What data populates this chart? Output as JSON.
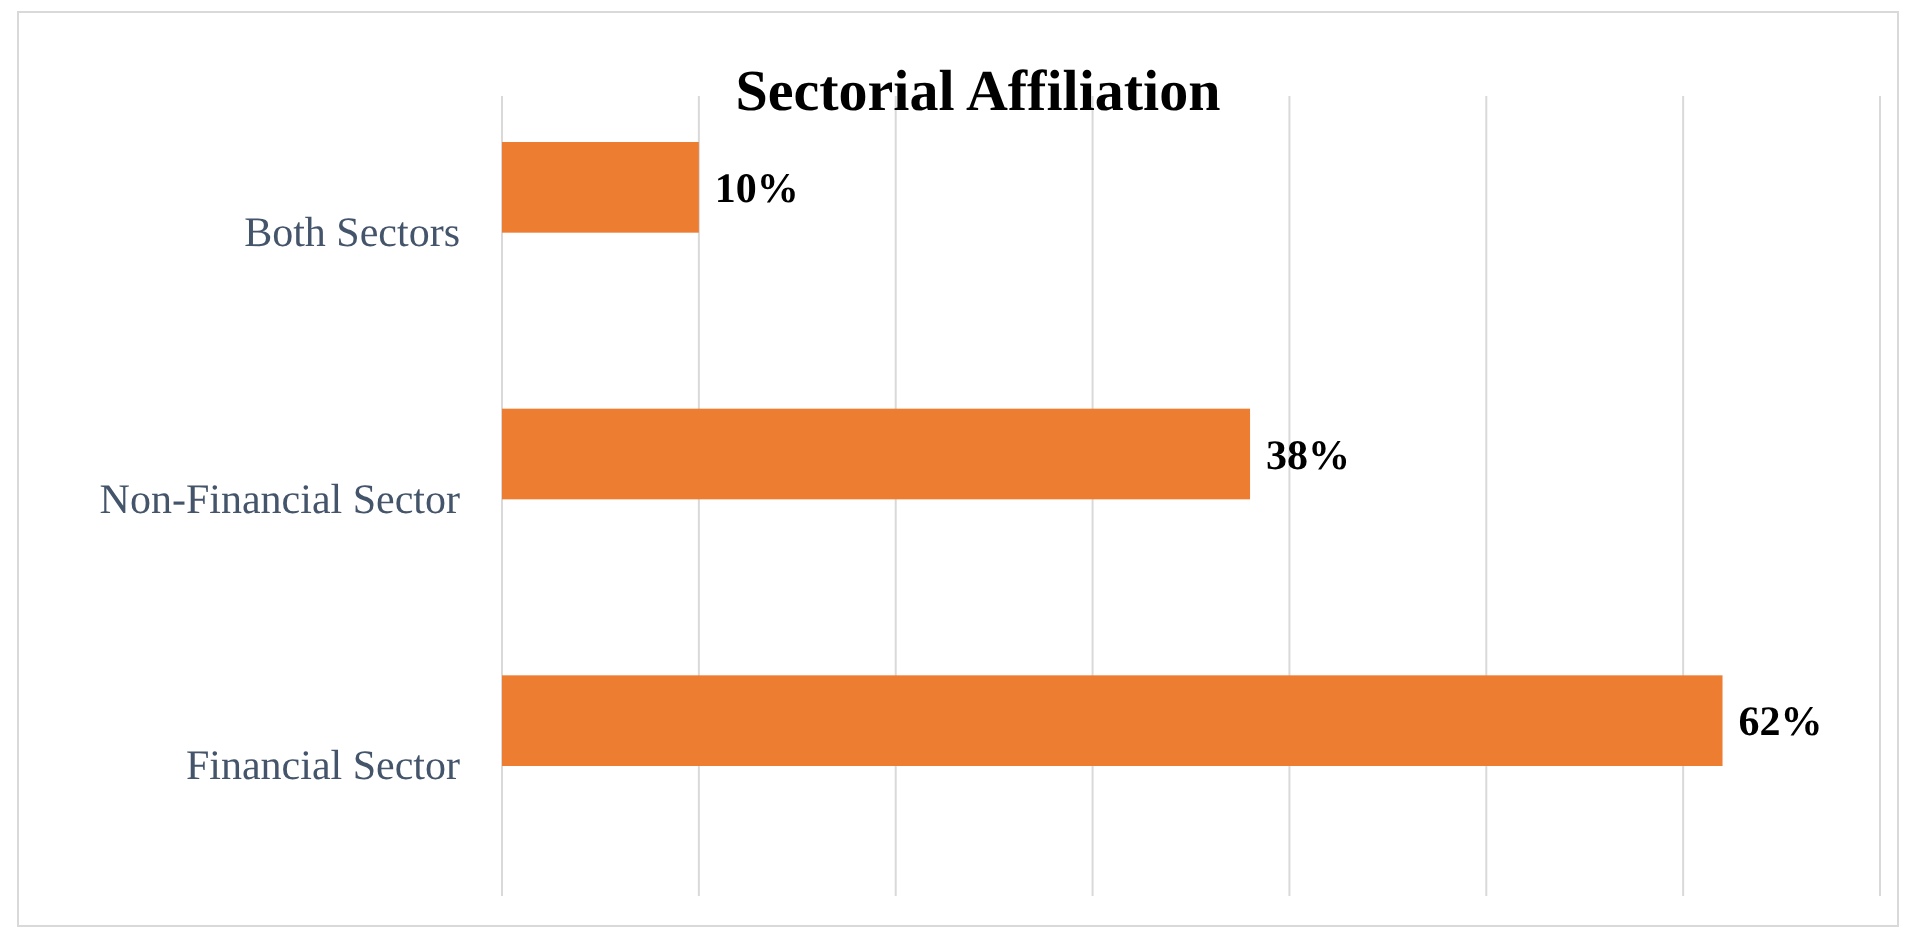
{
  "chart_data": {
    "type": "bar",
    "title": "Sectorial Affiliation",
    "orientation": "horizontal",
    "categories": [
      "Both Sectors",
      "Non-Financial Sector",
      "Financial Sector"
    ],
    "values": [
      10,
      38,
      62
    ],
    "color": "#ed7d31",
    "value_labels": [
      "10%",
      "38%",
      "62%"
    ],
    "xlim": [
      0,
      70
    ],
    "xticks": [
      {
        "value": 0,
        "label": null
      },
      {
        "value": 10,
        "label": null
      },
      {
        "value": 20,
        "label": null
      },
      {
        "value": 30,
        "label": null
      },
      {
        "value": 40,
        "label": null
      },
      {
        "value": 50,
        "label": null
      },
      {
        "value": 60,
        "label": null
      },
      {
        "value": 70,
        "label": null
      }
    ],
    "tick_labels": "y",
    "grid": "x"
  }
}
